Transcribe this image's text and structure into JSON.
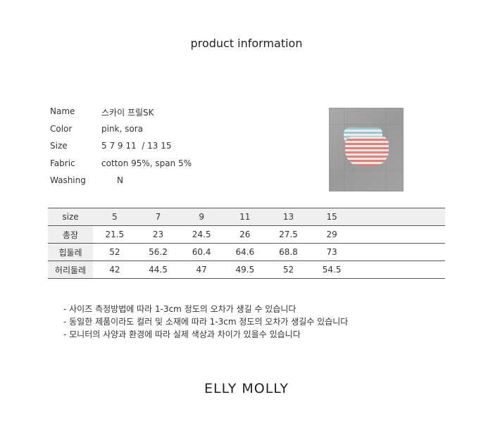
{
  "title": "product information",
  "info": [
    {
      "label": "Name",
      "value": "스카이 프릴SK"
    },
    {
      "label": "Color",
      "value": "pink, sora"
    },
    {
      "label": "Size",
      "value": "5 7 9 11  / 13 15"
    },
    {
      "label": "Fabric",
      "value": "cotton 95%, span 5%"
    },
    {
      "label": "Washing",
      "value": "N"
    }
  ],
  "size_table": {
    "header": [
      "size",
      "5",
      "7",
      "9",
      "11",
      "13",
      "15"
    ],
    "rows": [
      [
        "총장",
        "21.5",
        "23",
        "24.5",
        "26",
        "27.5",
        "29"
      ],
      [
        "힙둘레",
        "52",
        "56.2",
        "60.4",
        "64.6",
        "68.8",
        "73"
      ],
      [
        "허리둘레",
        "42",
        "44.5",
        "47",
        "49.5",
        "52",
        "54.5"
      ]
    ]
  },
  "notes": [
    "- 사이즈 측정방법에 따라 1-3cm 정도의 오차가 생길 수 있습니다",
    "- 동일한 제품이라도 컬러 및 소재에 따라 1-3cm 정도의 오차가 생길수 있습니다",
    "- 모니터의 사양과 환경에 따라 실제 색상과 차이가 있을수 있습니다"
  ],
  "brand": "ELLY MOLLY"
}
